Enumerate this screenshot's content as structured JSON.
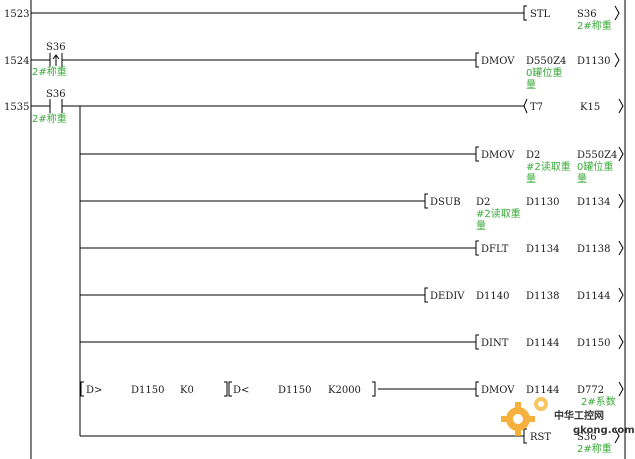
{
  "steps": [
    "1523",
    "1524",
    "1535"
  ],
  "contacts": {
    "c1": {
      "device": "S36",
      "comment": "2#称重"
    },
    "c2": {
      "device": "S36",
      "comment": "2#称重"
    }
  },
  "instructions": {
    "r0": {
      "op": "STL",
      "a1": "S36",
      "a1c": "2#称重"
    },
    "r1": {
      "op": "DMOV",
      "a1": "D550Z4",
      "a1c1": "0罐位重",
      "a1c2": "量",
      "a2": "D1130"
    },
    "r2": {
      "op": "T7",
      "a2": "K15"
    },
    "r3": {
      "op": "DMOV",
      "a1": "D2",
      "a1c1": "#2读取重",
      "a1c2": "量",
      "a2": "D550Z4",
      "a2c1": "0罐位重",
      "a2c2": "量"
    },
    "r4": {
      "op": "DSUB",
      "a0": "D2",
      "a0c1": "#2读取重",
      "a0c2": "量",
      "a1": "D1130",
      "a2": "D1134"
    },
    "r5": {
      "op": "DFLT",
      "a1": "D1134",
      "a2": "D1138"
    },
    "r6": {
      "op": "DEDIV",
      "a0": "D1140",
      "a1": "D1138",
      "a2": "D1144"
    },
    "r7": {
      "op": "DINT",
      "a1": "D1144",
      "a2": "D1150"
    },
    "r8": {
      "cmp1_op": "D>",
      "cmp1_a": "D1150",
      "cmp1_b": "K0",
      "cmp2_op": "D<",
      "cmp2_a": "D1150",
      "cmp2_b": "K2000",
      "op": "DMOV",
      "a1": "D1144",
      "a2": "D772",
      "a2c": "2#系数"
    },
    "r9": {
      "op": "RST",
      "a2": "S36",
      "a2c": "2#称重"
    }
  },
  "watermark": {
    "text1": "中华工控网",
    "text2": "gkong.com",
    "gear_color": "#f5a623",
    "text_color": "#e8433a"
  }
}
